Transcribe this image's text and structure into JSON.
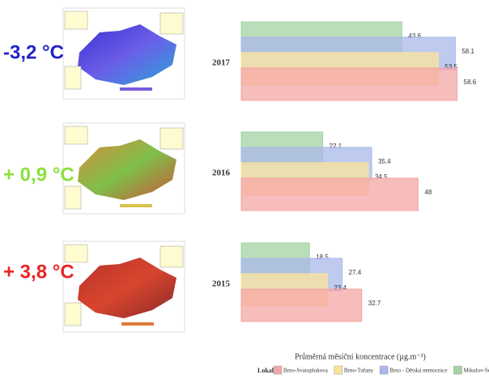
{
  "chart_data": {
    "type": "bar",
    "orientation": "horizontal",
    "categories": [
      "2017",
      "2016",
      "2015"
    ],
    "series": [
      {
        "name": "Brno-Svatoplukova",
        "color": "#f4a6a6",
        "values": [
          58.6,
          48,
          32.7
        ]
      },
      {
        "name": "Brno-Tuřany",
        "color": "#fbe49a",
        "values": [
          53.5,
          34.5,
          23.4
        ]
      },
      {
        "name": "Brno - Dětská nemocnice",
        "color": "#a9b8ea",
        "values": [
          58.1,
          35.4,
          27.4
        ]
      },
      {
        "name": "Mikulov-Sedlec",
        "color": "#a3d3a3",
        "values": [
          43.6,
          22.1,
          18.5
        ]
      }
    ],
    "xlim": [
      0,
      60
    ],
    "x_label": "Průměrná měsíční koncentrace  (µg.m⁻³)",
    "legend_title": "Lokalita",
    "annotations": [
      {
        "text": "-3,2 °C",
        "color": "#2323c8"
      },
      {
        "text": "+ 0,9 °C",
        "color": "#8be03c"
      },
      {
        "text": "+ 3,8 °C",
        "color": "#ec2424"
      }
    ]
  }
}
